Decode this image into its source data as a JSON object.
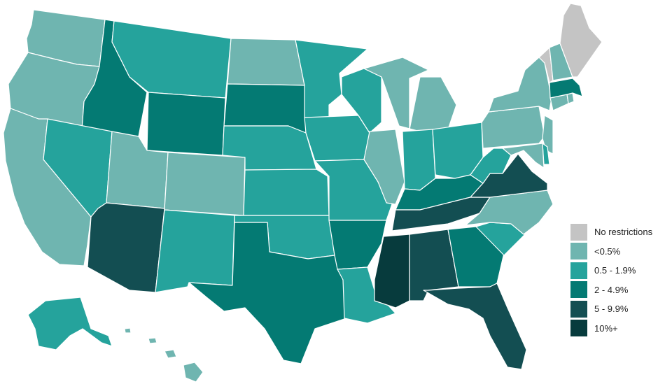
{
  "legend": {
    "items": [
      {
        "label": "No restrictions",
        "color": "#c4c4c4"
      },
      {
        "label": "<0.5%",
        "color": "#6fb5b0"
      },
      {
        "label": "0.5 - 1.9%",
        "color": "#25a39c"
      },
      {
        "label": "2 - 4.9%",
        "color": "#047a73"
      },
      {
        "label": "5 - 9.9%",
        "color": "#134e52"
      },
      {
        "label": "10%+",
        "color": "#073b3d"
      }
    ]
  },
  "states": {
    "WA": 1,
    "OR": 1,
    "CA": 1,
    "ID": 3,
    "NV": 2,
    "AZ": 4,
    "UT": 1,
    "MT": 2,
    "WY": 3,
    "CO": 1,
    "NM": 2,
    "ND": 1,
    "SD": 3,
    "NE": 2,
    "KS": 2,
    "OK": 2,
    "TX": 3,
    "MN": 2,
    "IA": 2,
    "MO": 2,
    "AR": 3,
    "LA": 2,
    "WI": 2,
    "IL": 1,
    "MI": 1,
    "IN": 2,
    "OH": 2,
    "KY": 3,
    "TN": 4,
    "MS": 5,
    "AL": 4,
    "GA": 3,
    "FL": 4,
    "SC": 2,
    "NC": 1,
    "VA": 4,
    "WV": 2,
    "PA": 1,
    "NY": 1,
    "VT": 0,
    "NH": 1,
    "ME": 0,
    "MA": 3,
    "CT": 1,
    "RI": 1,
    "NJ": 1,
    "DE": 2,
    "MD": 1,
    "AK": 2,
    "HI": 1
  }
}
